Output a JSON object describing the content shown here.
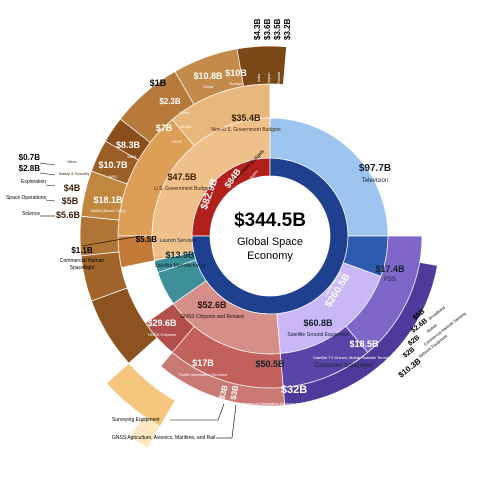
{
  "chart_data": {
    "type": "sunburst",
    "center": {
      "value": "$344.5B",
      "line1": "Global Space",
      "line2": "Economy"
    },
    "colors": {
      "government": "#b8691f",
      "commercial": "#1f3f8f",
      "wedge_gov": "#b3201c",
      "pink": "#c2605c",
      "teal": "#3d8f9a",
      "lav": "#7e67c9",
      "blue": "#9dc3ef",
      "sand": "#f4c67e"
    },
    "level1": [
      {
        "name": "Non-Satellite Industry",
        "value": "$84B",
        "key": "wedge_gov"
      },
      {
        "name": "Satellite Industry",
        "value": "$260.5B",
        "key": "commercial"
      }
    ],
    "level2": [
      {
        "name": "Government Budgets",
        "value": "$82.9B"
      },
      {
        "name": "Launch Services",
        "value": "$5.5B"
      },
      {
        "name": "Satellite Manufacturing",
        "value": "$13.9B"
      },
      {
        "name": "GNSS Chipsets and Related",
        "value": "$52.6B"
      },
      {
        "name": "Satellite Ground Equipment",
        "value": "$60.8B"
      },
      {
        "name": "FSS",
        "value": "$17.4B"
      },
      {
        "name": "Television",
        "value": "$97.7B"
      }
    ],
    "level3": [
      {
        "name": "Non-U.S. Government Budgets",
        "value": "$35.4B"
      },
      {
        "name": "U.S. Government Budget",
        "value": "$47.5B"
      },
      {
        "name": "NASA (Space Only)",
        "value": "$18.1B"
      },
      {
        "name": "NRO",
        "value": "$10.7B"
      },
      {
        "name": "MDA",
        "value": "$8.3B"
      },
      {
        "name": "USSF",
        "value": "$7B"
      },
      {
        "name": "NOAA",
        "value": "$2.3B"
      },
      {
        "name": "Other",
        "value": "$1B"
      },
      {
        "name": "China",
        "value": "$10.8B"
      },
      {
        "name": "Europe",
        "value": "$10B"
      },
      {
        "name": "Consumer Equipment",
        "value": "$50.5B"
      },
      {
        "name": "Network Equipment",
        "value": "$10.3B"
      },
      {
        "name": "Satellite TV Dishes, Mobile Satellite Terminals, etc.",
        "value": "$18.5B"
      },
      {
        "name": "Personal Navigation Devices and In-Vehicle Systems",
        "value": "$32B"
      },
      {
        "name": "GNSS Chipsets",
        "value": "$29.6B"
      },
      {
        "name": "Traffic Information Services",
        "value": "$17B"
      },
      {
        "name": "Surveying Equipment",
        "value": "$3B"
      },
      {
        "name": "GNSS Agriculture, Avionics, Maritime, and Rail",
        "value": "$3B"
      }
    ],
    "outer_gov": [
      {
        "name": "Other",
        "value": "$1B"
      },
      {
        "name": "Safety & Security",
        "value": "$2.8B"
      },
      {
        "name": "Exploration",
        "value": "$4B"
      },
      {
        "name": "Space Operations",
        "value": "$5B"
      },
      {
        "name": "Science",
        "value": "$5.6B"
      }
    ],
    "left_labels": [
      {
        "text": "$0.7B"
      },
      {
        "text": "$2.8B"
      },
      {
        "text": "Exploration"
      },
      {
        "text": "Space Operations"
      },
      {
        "text": "Science"
      },
      {
        "text": "$1.1B"
      },
      {
        "text": "Commercial Human"
      },
      {
        "text": "Spaceflight"
      }
    ],
    "top_labels": [
      "$4.3B",
      "$3.6B",
      "$3.5B",
      "$3.2B"
    ],
    "top_small": [
      "India",
      "Japan",
      "Russia",
      "Rest of World"
    ],
    "right_labels": [
      "$5B",
      "$2.6B",
      "$2B",
      "$2B",
      "$10.3B"
    ],
    "right_small": [
      "Broadband",
      "Mobile",
      "Commercial Remote Sensing",
      "Network Equipment"
    ],
    "bottom_labels": [
      "Surveying Equipment",
      "GNSS Agriculture, Avionics, Maritime, and Rail"
    ]
  }
}
